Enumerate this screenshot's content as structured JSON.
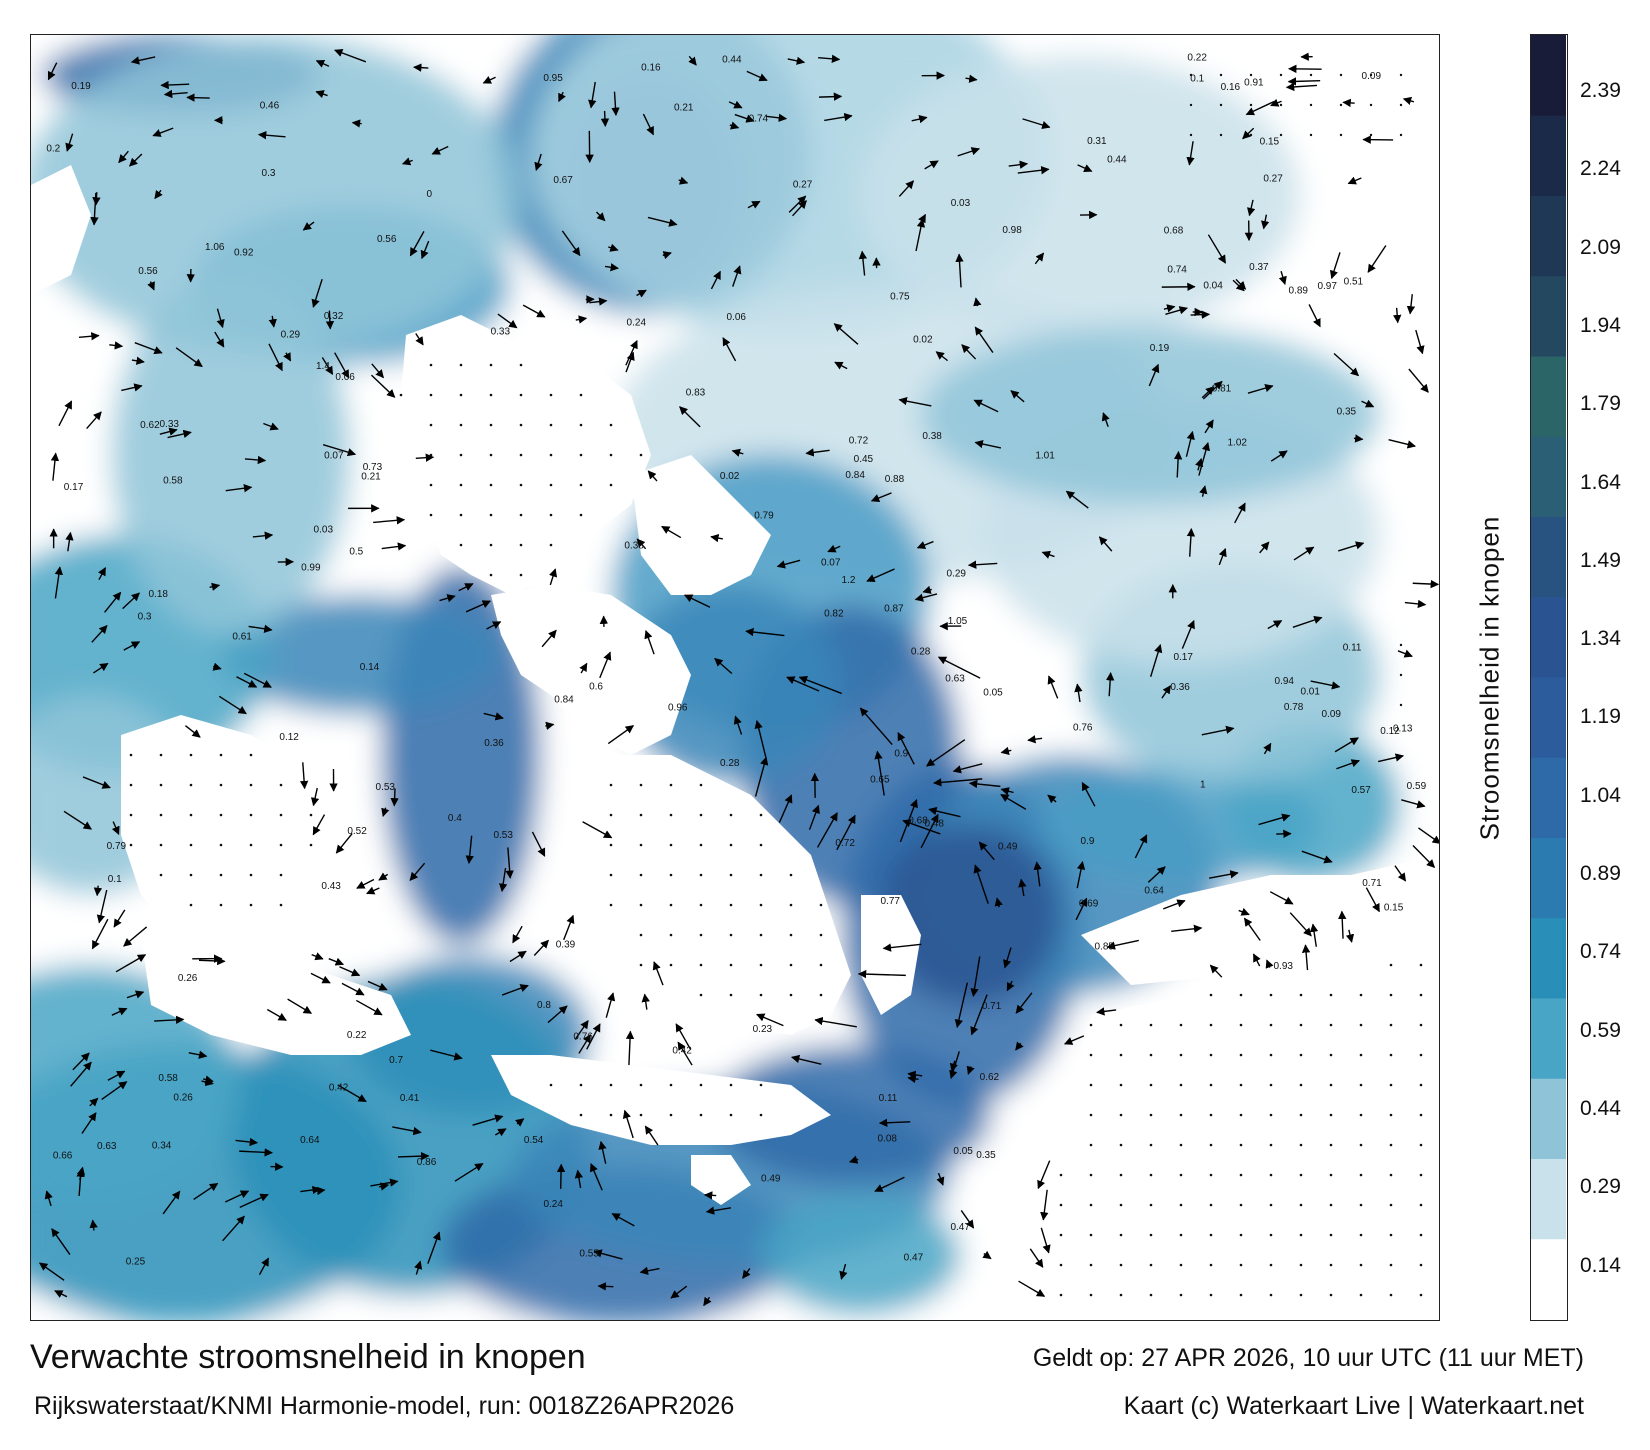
{
  "map": {
    "title": "Verwachte stroomsnelheid in knopen",
    "model_run": "Rijkswaterstaat/KNMI Harmonie-model, run: 0018Z26APR2026",
    "valid_time": "Geldt op: 27 APR 2026, 10 uur UTC (11 uur MET)",
    "credit": "Kaart (c) Waterkaart Live | Waterkaart.net"
  },
  "legend": {
    "title": "Stroomsnelheid in knopen",
    "ticks": [
      "2.39",
      "2.24",
      "2.09",
      "1.94",
      "1.79",
      "1.64",
      "1.49",
      "1.34",
      "1.19",
      "1.04",
      "0.89",
      "0.74",
      "0.59",
      "0.44",
      "0.29",
      "0.14"
    ],
    "colors": [
      "#ffffff",
      "#c9e1ea",
      "#8fc4d8",
      "#49a5c6",
      "#2a8fb8",
      "#2b7bb0",
      "#2f6aa8",
      "#2c5c9c",
      "#2a5491",
      "#28527f",
      "#2a5f75",
      "#2b6568",
      "#23485f",
      "#1f3856",
      "#1b2a49",
      "#181c38"
    ],
    "icons": [
      "colorbar-swatch"
    ]
  },
  "labels": [
    {
      "t": "0.2",
      "v": 0.2
    },
    {
      "t": "0.24",
      "v": 0.24
    },
    {
      "t": "0.23",
      "v": 0.23
    },
    {
      "t": "0.21",
      "v": 0.21
    },
    {
      "t": "0.25",
      "v": 0.25
    },
    {
      "t": "0.27",
      "v": 0.27
    },
    {
      "t": "0.31",
      "v": 0.31
    },
    {
      "t": "0.29",
      "v": 0.29
    },
    {
      "t": "0.19",
      "v": 0.19
    },
    {
      "t": "0.15",
      "v": 0.15
    },
    {
      "t": "0.35",
      "v": 0.35
    },
    {
      "t": "0.41",
      "v": 0.41
    },
    {
      "t": "0.73",
      "v": 0.73
    },
    {
      "t": "0.81",
      "v": 0.81
    },
    {
      "t": "0.93",
      "v": 0.93
    },
    {
      "t": "0.52",
      "v": 0.52
    },
    {
      "t": "0.61",
      "v": 0.61
    },
    {
      "t": "0.74",
      "v": 0.74
    },
    {
      "t": "0.87",
      "v": 0.87
    },
    {
      "t": "1.01",
      "v": 1.01
    },
    {
      "t": "1.05",
      "v": 1.05
    },
    {
      "t": "1.4",
      "v": 1.4
    },
    {
      "t": "1.2",
      "v": 1.2
    },
    {
      "t": "0.96",
      "v": 0.96
    },
    {
      "t": "0.84",
      "v": 0.84
    },
    {
      "t": "0.92",
      "v": 0.92
    },
    {
      "t": "0.58",
      "v": 0.58
    },
    {
      "t": "0.64",
      "v": 0.64
    },
    {
      "t": "0.79",
      "v": 0.79
    },
    {
      "t": "0.66",
      "v": 0.66
    },
    {
      "t": "0.72",
      "v": 0.72
    },
    {
      "t": "0.7",
      "v": 0.7
    },
    {
      "t": "0.49",
      "v": 0.49
    },
    {
      "t": "0.45",
      "v": 0.45
    },
    {
      "t": "0.38",
      "v": 0.38
    },
    {
      "t": "0.12",
      "v": 0.12
    },
    {
      "t": "0.08",
      "v": 0.08
    },
    {
      "t": "0.05",
      "v": 0.05
    },
    {
      "t": "0.02",
      "v": 0.02
    },
    {
      "t": "0.01",
      "v": 0.01
    },
    {
      "t": "0.17",
      "v": 0.17
    },
    {
      "t": "0.13",
      "v": 0.13
    },
    {
      "t": "0.14",
      "v": 0.14
    },
    {
      "t": "0.33",
      "v": 0.33
    },
    {
      "t": "0.44",
      "v": 0.44
    },
    {
      "t": "0.54",
      "v": 0.54
    },
    {
      "t": "0.63",
      "v": 0.63
    },
    {
      "t": "0.78",
      "v": 0.78
    },
    {
      "t": "0.85",
      "v": 0.85
    },
    {
      "t": "0.91",
      "v": 0.91
    },
    {
      "t": "0.82",
      "v": 0.82
    },
    {
      "t": "0.75",
      "v": 0.75
    },
    {
      "t": "0.67",
      "v": 0.67
    },
    {
      "t": "0.57",
      "v": 0.57
    },
    {
      "t": "0.46",
      "v": 0.46
    },
    {
      "t": "0.36",
      "v": 0.36
    },
    {
      "t": "0.26",
      "v": 0.26
    },
    {
      "t": "0.22",
      "v": 0.22
    },
    {
      "t": "0.18",
      "v": 0.18
    },
    {
      "t": "0.11",
      "v": 0.11
    },
    {
      "t": "0.06",
      "v": 0.06
    },
    {
      "t": "0.03",
      "v": 0.03
    },
    {
      "t": "0.09",
      "v": 0.09
    },
    {
      "t": "0.28",
      "v": 0.28
    },
    {
      "t": "0.32",
      "v": 0.32
    },
    {
      "t": "0.4",
      "v": 0.4
    },
    {
      "t": "0.53",
      "v": 0.53
    },
    {
      "t": "0.6",
      "v": 0.6
    },
    {
      "t": "0.68",
      "v": 0.68
    },
    {
      "t": "0.76",
      "v": 0.76
    },
    {
      "t": "0.89",
      "v": 0.89
    },
    {
      "t": "0.94",
      "v": 0.94
    },
    {
      "t": "0.97",
      "v": 0.97
    },
    {
      "t": "0.86",
      "v": 0.86
    },
    {
      "t": "0.71",
      "v": 0.71
    },
    {
      "t": "0.62",
      "v": 0.62
    },
    {
      "t": "0.5",
      "v": 0.5
    },
    {
      "t": "0.39",
      "v": 0.39
    },
    {
      "t": "0.3",
      "v": 0.3
    },
    {
      "t": "0.16",
      "v": 0.16
    },
    {
      "t": "0.07",
      "v": 0.07
    },
    {
      "t": "0.04",
      "v": 0.04
    },
    {
      "t": "0",
      "v": 0
    },
    {
      "t": "0.1",
      "v": 0.1
    },
    {
      "t": "0.34",
      "v": 0.34
    },
    {
      "t": "0.43",
      "v": 0.43
    },
    {
      "t": "0.56",
      "v": 0.56
    },
    {
      "t": "0.69",
      "v": 0.69
    },
    {
      "t": "0.77",
      "v": 0.77
    },
    {
      "t": "0.88",
      "v": 0.88
    },
    {
      "t": "0.9",
      "v": 0.9
    },
    {
      "t": "0.8",
      "v": 0.8
    },
    {
      "t": "0.65",
      "v": 0.65
    },
    {
      "t": "0.55",
      "v": 0.55
    },
    {
      "t": "0.47",
      "v": 0.47
    },
    {
      "t": "0.42",
      "v": 0.42
    },
    {
      "t": "0.37",
      "v": 0.37
    },
    {
      "t": "0.48",
      "v": 0.48
    },
    {
      "t": "0.51",
      "v": 0.51
    },
    {
      "t": "0.59",
      "v": 0.59
    },
    {
      "t": "0.83",
      "v": 0.83
    },
    {
      "t": "0.95",
      "v": 0.95
    },
    {
      "t": "1.06",
      "v": 1.06
    },
    {
      "t": "0.98",
      "v": 0.98
    },
    {
      "t": "0.99",
      "v": 0.99
    },
    {
      "t": "1",
      "v": 1.0
    },
    {
      "t": "1.02",
      "v": 1.02
    },
    {
      "t": "0.71",
      "v": 0.71
    },
    {
      "t": "0.62",
      "v": 0.62
    },
    {
      "t": "0.53",
      "v": 0.53
    },
    {
      "t": "0.44",
      "v": 0.44
    },
    {
      "t": "0.36",
      "v": 0.36
    },
    {
      "t": "0.27",
      "v": 0.27
    },
    {
      "t": "0.19",
      "v": 0.19
    },
    {
      "t": "0.12",
      "v": 0.12
    },
    {
      "t": "0.3",
      "v": 0.3
    },
    {
      "t": "0.24",
      "v": 0.24
    },
    {
      "t": "0.15",
      "v": 0.15
    },
    {
      "t": "0.09",
      "v": 0.09
    },
    {
      "t": "0.05",
      "v": 0.05
    },
    {
      "t": "0.68",
      "v": 0.68
    },
    {
      "t": "0.74",
      "v": 0.74
    },
    {
      "t": "0.79",
      "v": 0.79
    },
    {
      "t": "0.58",
      "v": 0.58
    },
    {
      "t": "0.42",
      "v": 0.42
    },
    {
      "t": "0.33",
      "v": 0.33
    },
    {
      "t": "0.26",
      "v": 0.26
    },
    {
      "t": "0.17",
      "v": 0.17
    },
    {
      "t": "0.11",
      "v": 0.11
    },
    {
      "t": "0.07",
      "v": 0.07
    },
    {
      "t": "0.21",
      "v": 0.21
    },
    {
      "t": "0.28",
      "v": 0.28
    },
    {
      "t": "0.35",
      "v": 0.35
    },
    {
      "t": "0.47",
      "v": 0.47
    },
    {
      "t": "0.56",
      "v": 0.56
    },
    {
      "t": "0.64",
      "v": 0.64
    },
    {
      "t": "0.72",
      "v": 0.72
    },
    {
      "t": "0.84",
      "v": 0.84
    },
    {
      "t": "0.9",
      "v": 0.9
    },
    {
      "t": "0.76",
      "v": 0.76
    },
    {
      "t": "0.63",
      "v": 0.63
    },
    {
      "t": "0.49",
      "v": 0.49
    },
    {
      "t": "0.38",
      "v": 0.38
    },
    {
      "t": "0.29",
      "v": 0.29
    },
    {
      "t": "0.22",
      "v": 0.22
    },
    {
      "t": "0.16",
      "v": 0.16
    },
    {
      "t": "0.1",
      "v": 0.1
    },
    {
      "t": "0.06",
      "v": 0.06
    },
    {
      "t": "0.03",
      "v": 0.03
    },
    {
      "t": "0.02",
      "v": 0.02
    }
  ]
}
